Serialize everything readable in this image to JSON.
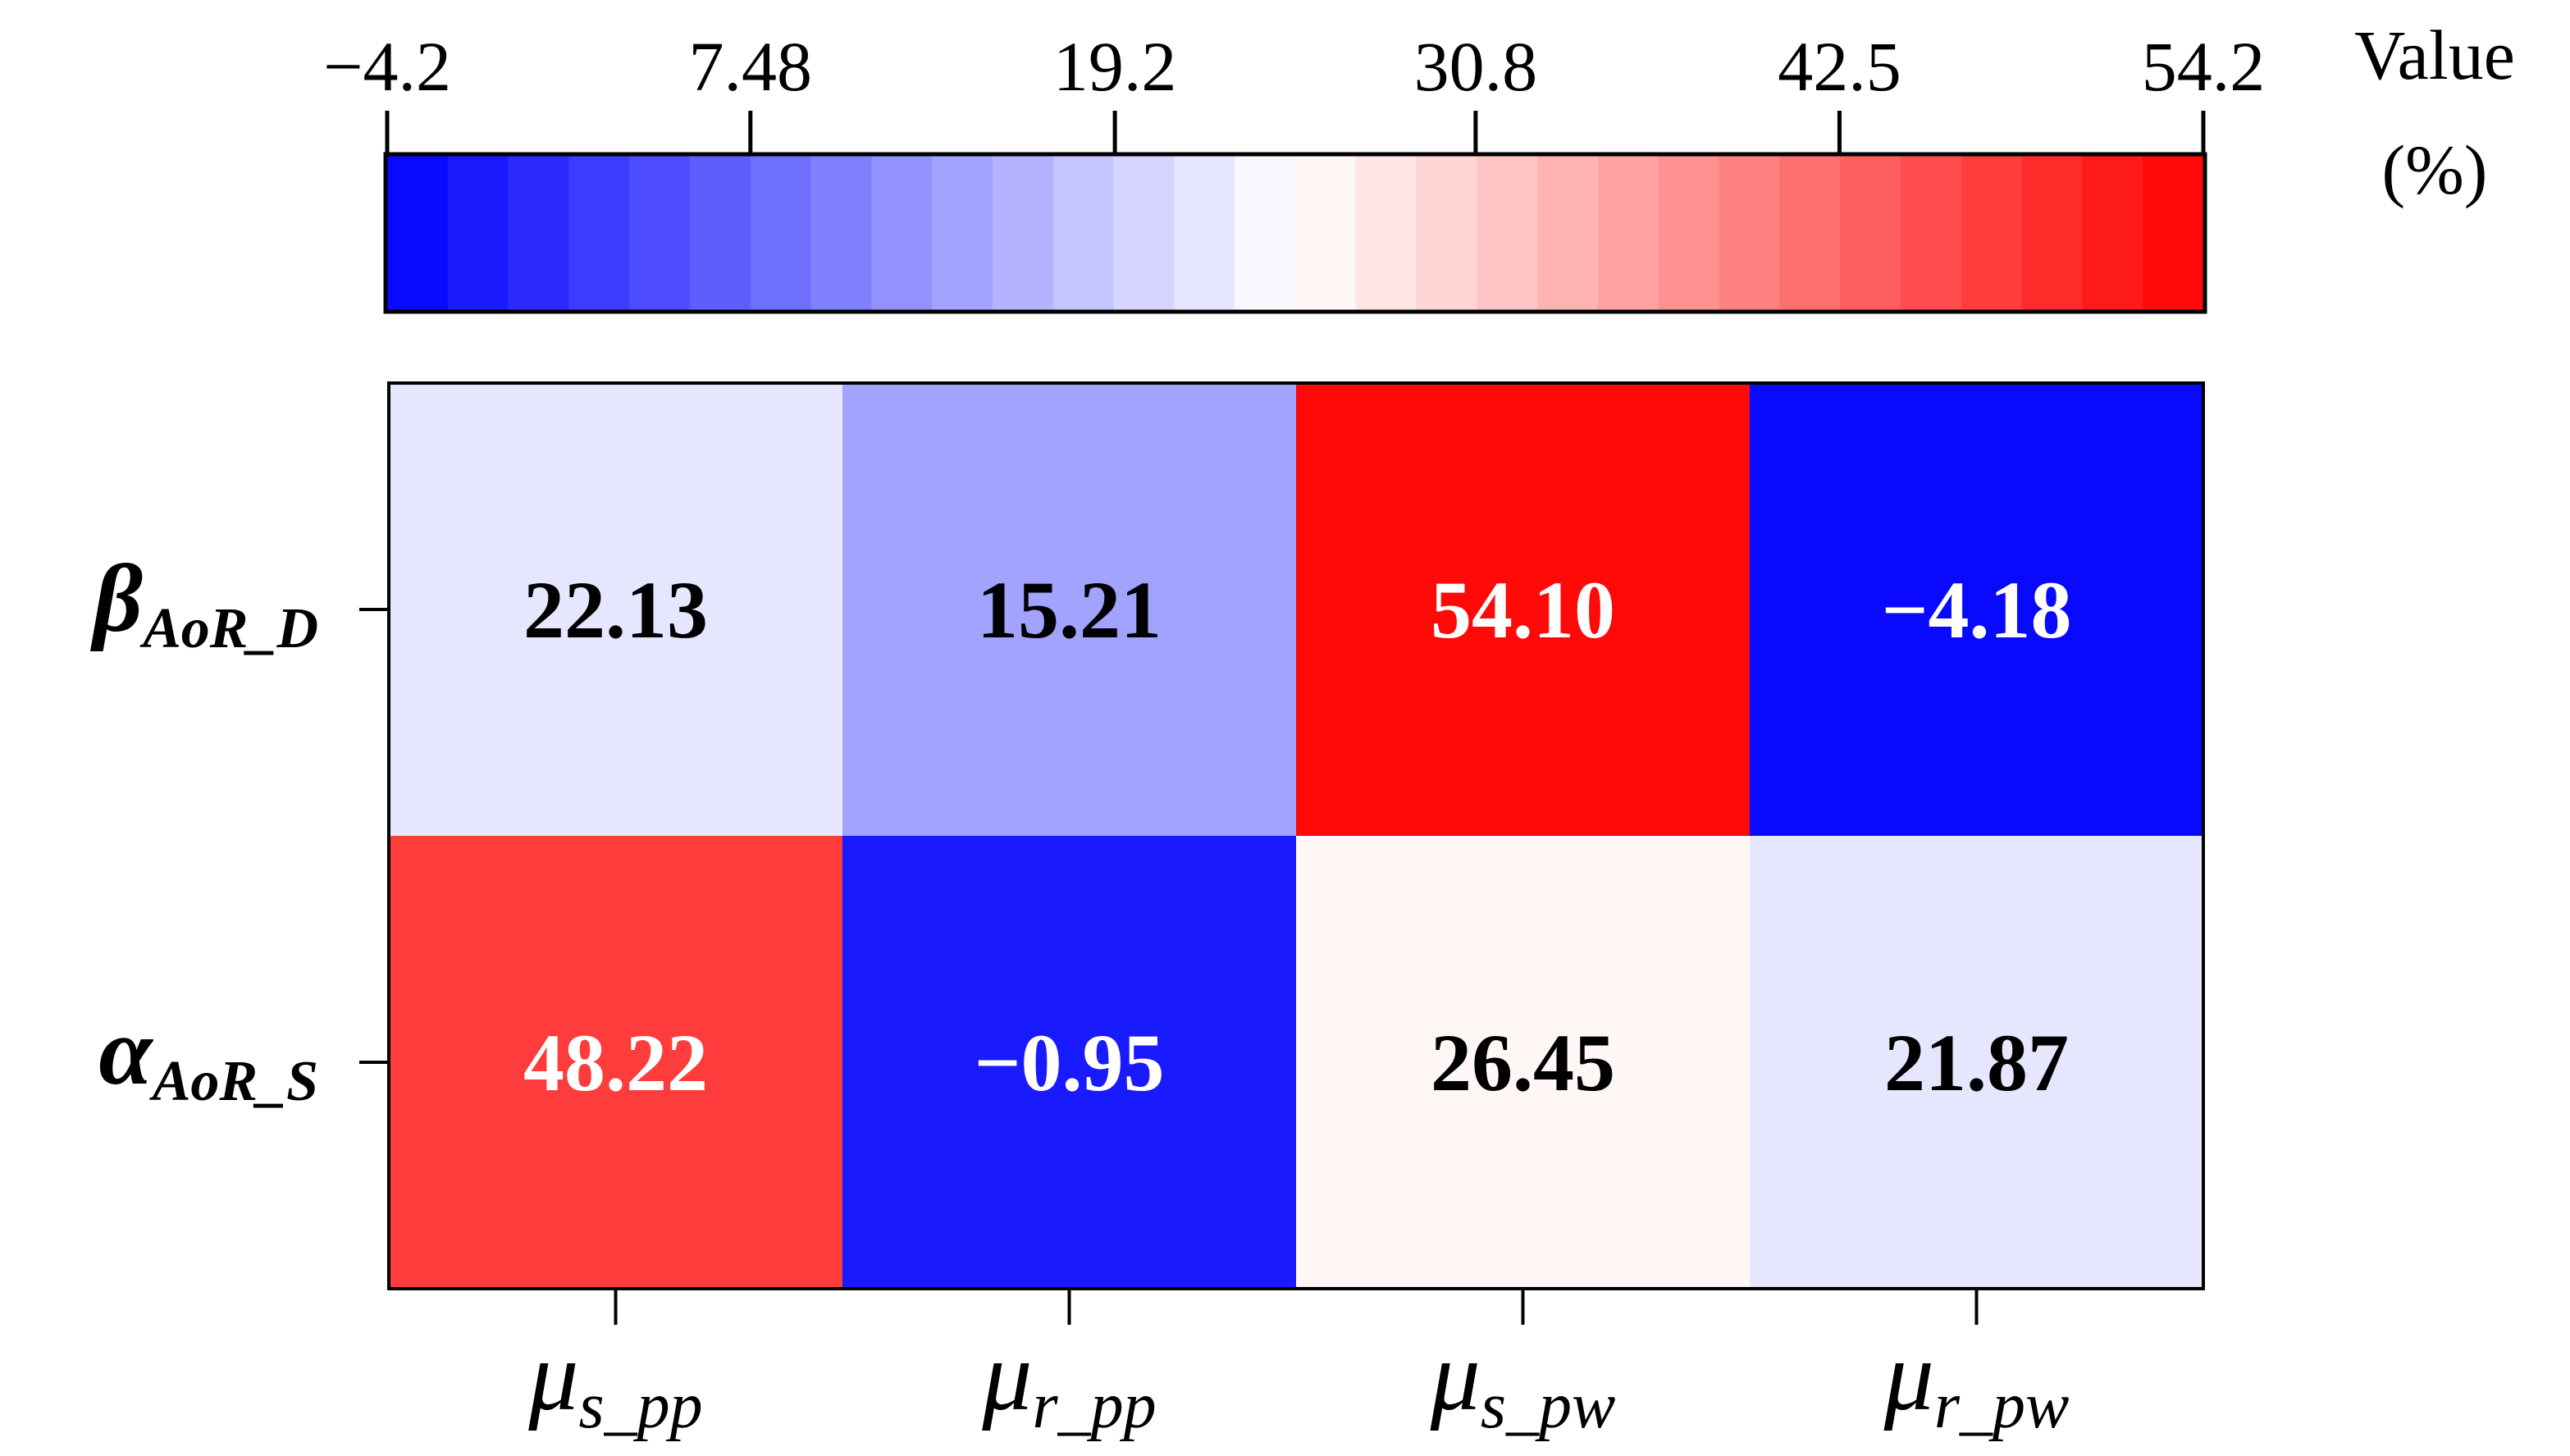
{
  "chart_data": {
    "type": "heatmap",
    "title": "",
    "colorbar": {
      "title_line1": "Value",
      "title_line2": "(%)",
      "min": -4.2,
      "max": 54.2,
      "tick_values": [
        -4.2,
        7.48,
        19.2,
        30.8,
        42.5,
        54.2
      ],
      "tick_labels": [
        "−4.2",
        "7.48",
        "19.2",
        "30.8",
        "42.5",
        "54.2"
      ],
      "steps": 30,
      "color_low": "#0000ff",
      "color_mid": "#ffffff",
      "color_high": "#ff0000"
    },
    "columns": [
      {
        "base": "μ",
        "sub": "s_pp"
      },
      {
        "base": "μ",
        "sub": "r_pp"
      },
      {
        "base": "μ",
        "sub": "s_pw"
      },
      {
        "base": "μ",
        "sub": "r_pw"
      }
    ],
    "rows": [
      {
        "base": "β",
        "sub": "AoR_D",
        "values": [
          22.13,
          15.21,
          54.1,
          -4.18
        ],
        "labels": [
          "22.13",
          "15.21",
          "54.10",
          "−4.18"
        ]
      },
      {
        "base": "α",
        "sub": "AoR_S",
        "values": [
          48.22,
          -0.95,
          26.45,
          21.87
        ],
        "labels": [
          "48.22",
          "−0.95",
          "26.45",
          "21.87"
        ]
      }
    ]
  }
}
